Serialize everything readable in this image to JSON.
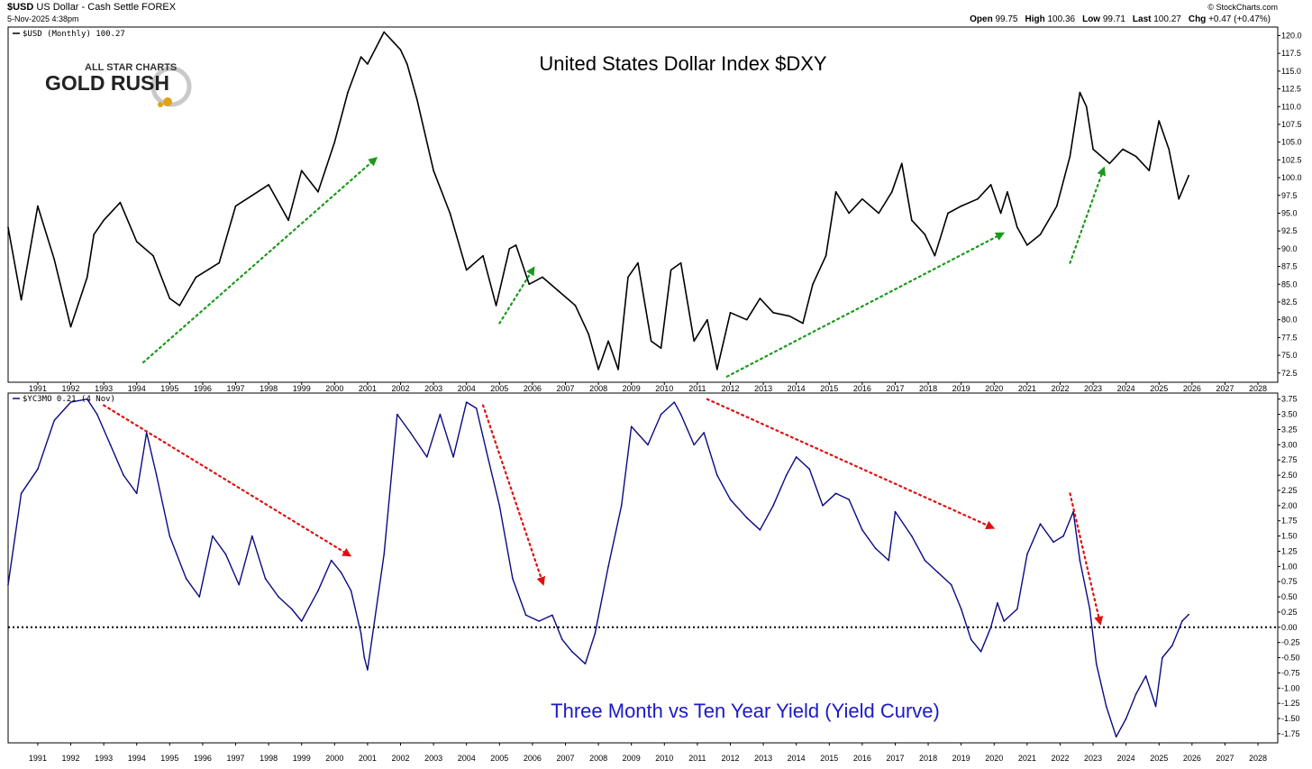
{
  "header": {
    "symbol": "$USD",
    "name": "US Dollar - Cash Settle FOREX",
    "datetime": "5-Nov-2025 4:38pm",
    "credit": "© StockCharts.com",
    "ohlc": [
      {
        "label": "Open",
        "value": "99.75"
      },
      {
        "label": "High",
        "value": "100.36"
      },
      {
        "label": "Low",
        "value": "99.71"
      },
      {
        "label": "Last",
        "value": "100.27"
      },
      {
        "label": "Chg",
        "value": "+0.47 (+0.47%)"
      }
    ]
  },
  "logo": {
    "line1": "ALL STAR CHARTS",
    "line2": "GOLD RUSH"
  },
  "colors": {
    "dxy": "#000000",
    "yield": "#0a0a82",
    "up_arrow": "#1a9a1a",
    "down_arrow": "#e01010",
    "title2": "#1a1ac8"
  },
  "chart_data": [
    {
      "type": "line",
      "title": "United States Dollar Index $DXY",
      "legend": "$USD (Monthly) 100.27",
      "x_ticks": [
        "1991",
        "1992",
        "1993",
        "1994",
        "1995",
        "1996",
        "1997",
        "1998",
        "1999",
        "2000",
        "2001",
        "2002",
        "2003",
        "2004",
        "2005",
        "2006",
        "2007",
        "2008",
        "2009",
        "2010",
        "2011",
        "2012",
        "2013",
        "2014",
        "2015",
        "2016",
        "2017",
        "2018",
        "2019",
        "2020",
        "2021",
        "2022",
        "2023",
        "2024",
        "2025",
        "2026",
        "2027",
        "2028"
      ],
      "y_ticks": [
        "72.5",
        "75.0",
        "77.5",
        "80.0",
        "82.5",
        "85.0",
        "87.5",
        "90.0",
        "92.5",
        "95.0",
        "97.5",
        "100.0",
        "102.5",
        "105.0",
        "107.5",
        "110.0",
        "112.5",
        "115.0",
        "117.5",
        "120.0"
      ],
      "ylim": [
        71.2,
        121.2
      ],
      "xlim": [
        1990.1,
        2028.6
      ],
      "series": [
        {
          "name": "$USD",
          "x": [
            1990.1,
            1990.5,
            1991.0,
            1991.5,
            1992.0,
            1992.5,
            1992.7,
            1993.0,
            1993.5,
            1994.0,
            1994.5,
            1995.0,
            1995.3,
            1995.8,
            1996.5,
            1997.0,
            1997.5,
            1998.0,
            1998.6,
            1999.0,
            1999.5,
            2000.0,
            2000.4,
            2000.8,
            2001.0,
            2001.5,
            2001.8,
            2002.0,
            2002.2,
            2002.5,
            2003.0,
            2003.5,
            2004.0,
            2004.5,
            2004.9,
            2005.3,
            2005.5,
            2005.9,
            2006.3,
            2006.8,
            2007.3,
            2007.7,
            2008.0,
            2008.3,
            2008.6,
            2008.9,
            2009.2,
            2009.6,
            2009.9,
            2010.2,
            2010.5,
            2010.9,
            2011.3,
            2011.6,
            2012.0,
            2012.5,
            2012.9,
            2013.3,
            2013.8,
            2014.2,
            2014.5,
            2014.9,
            2015.2,
            2015.6,
            2016.0,
            2016.5,
            2016.9,
            2017.2,
            2017.5,
            2017.9,
            2018.2,
            2018.6,
            2019.0,
            2019.5,
            2019.9,
            2020.2,
            2020.4,
            2020.7,
            2021.0,
            2021.4,
            2021.9,
            2022.3,
            2022.6,
            2022.8,
            2023.0,
            2023.5,
            2023.9,
            2024.3,
            2024.7,
            2025.0,
            2025.3,
            2025.6,
            2025.9
          ],
          "values": [
            93.0,
            82.8,
            96.0,
            88.5,
            79.0,
            86.0,
            92.0,
            94.0,
            96.5,
            91.0,
            89.0,
            83.0,
            82.0,
            86.0,
            88.0,
            96.0,
            97.5,
            99.0,
            94.0,
            101.0,
            98.0,
            105.0,
            112.0,
            117.0,
            116.0,
            120.5,
            119.0,
            118.0,
            116.0,
            111.0,
            101.0,
            95.0,
            87.0,
            89.0,
            82.0,
            90.0,
            90.5,
            85.0,
            86.0,
            84.0,
            82.0,
            78.0,
            73.0,
            77.0,
            73.0,
            86.0,
            88.0,
            77.0,
            76.0,
            87.0,
            88.0,
            77.0,
            80.0,
            73.0,
            81.0,
            80.0,
            83.0,
            81.0,
            80.5,
            79.5,
            85.0,
            89.0,
            98.0,
            95.0,
            97.0,
            95.0,
            98.0,
            102.0,
            94.0,
            92.0,
            89.0,
            95.0,
            96.0,
            97.0,
            99.0,
            95.0,
            98.0,
            93.0,
            90.5,
            92.0,
            96.0,
            103.0,
            112.0,
            110.0,
            104.0,
            102.0,
            104.0,
            103.0,
            101.0,
            108.0,
            104.0,
            97.0,
            100.3
          ]
        }
      ],
      "annotations": [
        {
          "type": "arrow",
          "color": "green",
          "from": [
            1994.2,
            74.0
          ],
          "to": [
            2001.2,
            102.5
          ]
        },
        {
          "type": "arrow",
          "color": "green",
          "from": [
            2005.0,
            79.5
          ],
          "to": [
            2006.0,
            87.0
          ]
        },
        {
          "type": "arrow",
          "color": "green",
          "from": [
            2011.9,
            72.0
          ],
          "to": [
            2020.2,
            92.0
          ]
        },
        {
          "type": "arrow",
          "color": "green",
          "from": [
            2022.3,
            88.0
          ],
          "to": [
            2023.3,
            101.0
          ]
        }
      ]
    },
    {
      "type": "line",
      "title": "Three Month vs Ten Year Yield (Yield Curve)",
      "legend": "$YC3MO 0.21 (4 Nov)",
      "x_ticks": [
        "1991",
        "1992",
        "1993",
        "1994",
        "1995",
        "1996",
        "1997",
        "1998",
        "1999",
        "2000",
        "2001",
        "2002",
        "2003",
        "2004",
        "2005",
        "2006",
        "2007",
        "2008",
        "2009",
        "2010",
        "2011",
        "2012",
        "2013",
        "2014",
        "2015",
        "2016",
        "2017",
        "2018",
        "2019",
        "2020",
        "2021",
        "2022",
        "2023",
        "2024",
        "2025",
        "2026",
        "2027",
        "2028"
      ],
      "y_ticks": [
        "-1.75",
        "-1.50",
        "-1.25",
        "-1.00",
        "-0.75",
        "-0.50",
        "-0.25",
        "0.00",
        "0.25",
        "0.50",
        "0.75",
        "1.00",
        "1.25",
        "1.50",
        "1.75",
        "2.00",
        "2.25",
        "2.50",
        "2.75",
        "3.00",
        "3.25",
        "3.50",
        "3.75"
      ],
      "ylim": [
        -1.9,
        3.85
      ],
      "xlim": [
        1990.1,
        2028.6
      ],
      "zero_line": true,
      "series": [
        {
          "name": "$YC3MO",
          "x": [
            1990.1,
            1990.5,
            1991.0,
            1991.5,
            1992.0,
            1992.5,
            1992.8,
            1993.2,
            1993.6,
            1994.0,
            1994.3,
            1994.6,
            1995.0,
            1995.5,
            1995.9,
            1996.3,
            1996.7,
            1997.1,
            1997.5,
            1997.9,
            1998.3,
            1998.7,
            1999.0,
            1999.5,
            1999.9,
            2000.2,
            2000.5,
            2000.8,
            2000.9,
            2001.0,
            2001.5,
            2001.9,
            2002.3,
            2002.8,
            2003.2,
            2003.6,
            2004.0,
            2004.3,
            2004.6,
            2005.0,
            2005.4,
            2005.8,
            2006.2,
            2006.6,
            2006.9,
            2007.2,
            2007.6,
            2007.9,
            2008.3,
            2008.7,
            2009.0,
            2009.5,
            2009.9,
            2010.3,
            2010.5,
            2010.9,
            2011.2,
            2011.6,
            2012.0,
            2012.5,
            2012.9,
            2013.3,
            2013.7,
            2014.0,
            2014.4,
            2014.8,
            2015.2,
            2015.6,
            2016.0,
            2016.4,
            2016.8,
            2017.0,
            2017.5,
            2017.9,
            2018.3,
            2018.7,
            2019.0,
            2019.3,
            2019.6,
            2019.9,
            2020.1,
            2020.3,
            2020.7,
            2021.0,
            2021.4,
            2021.8,
            2022.1,
            2022.4,
            2022.6,
            2022.9,
            2023.1,
            2023.4,
            2023.7,
            2024.0,
            2024.3,
            2024.6,
            2024.9,
            2025.1,
            2025.4,
            2025.7,
            2025.9
          ],
          "values": [
            0.7,
            2.2,
            2.6,
            3.4,
            3.7,
            3.75,
            3.5,
            3.0,
            2.5,
            2.2,
            3.2,
            2.5,
            1.5,
            0.8,
            0.5,
            1.5,
            1.2,
            0.7,
            1.5,
            0.8,
            0.5,
            0.3,
            0.1,
            0.6,
            1.1,
            0.9,
            0.6,
            -0.1,
            -0.5,
            -0.7,
            1.2,
            3.5,
            3.2,
            2.8,
            3.5,
            2.8,
            3.7,
            3.6,
            2.9,
            2.0,
            0.8,
            0.2,
            0.1,
            0.2,
            -0.2,
            -0.4,
            -0.6,
            -0.1,
            1.0,
            2.0,
            3.3,
            3.0,
            3.5,
            3.7,
            3.5,
            3.0,
            3.2,
            2.5,
            2.1,
            1.8,
            1.6,
            2.0,
            2.5,
            2.8,
            2.6,
            2.0,
            2.2,
            2.1,
            1.6,
            1.3,
            1.1,
            1.9,
            1.5,
            1.1,
            0.9,
            0.7,
            0.3,
            -0.2,
            -0.4,
            0.0,
            0.4,
            0.1,
            0.3,
            1.2,
            1.7,
            1.4,
            1.5,
            1.9,
            1.1,
            0.3,
            -0.6,
            -1.3,
            -1.8,
            -1.5,
            -1.1,
            -0.8,
            -1.3,
            -0.5,
            -0.3,
            0.1,
            0.21
          ]
        }
      ],
      "annotations": [
        {
          "type": "arrow",
          "color": "red",
          "from": [
            1993.0,
            3.65
          ],
          "to": [
            2000.4,
            1.2
          ]
        },
        {
          "type": "arrow",
          "color": "red",
          "from": [
            2004.5,
            3.65
          ],
          "to": [
            2006.3,
            0.75
          ]
        },
        {
          "type": "arrow",
          "color": "red",
          "from": [
            2011.3,
            3.75
          ],
          "to": [
            2019.9,
            1.65
          ]
        },
        {
          "type": "arrow",
          "color": "red",
          "from": [
            2022.3,
            2.2
          ],
          "to": [
            2023.2,
            0.1
          ]
        }
      ]
    }
  ]
}
